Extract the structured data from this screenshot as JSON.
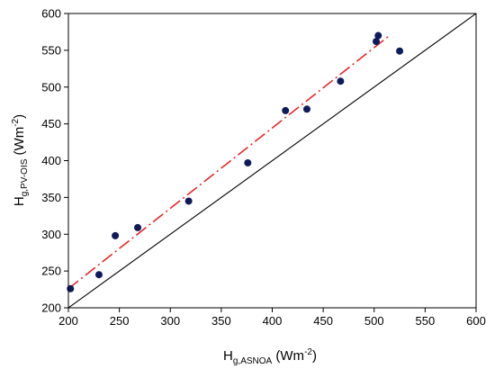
{
  "chart_data": {
    "type": "scatter",
    "xlabel": {
      "main": "H",
      "sub": "g,ASNOA",
      "unit_pre": " (Wm",
      "unit_sup": "-2",
      "unit_post": ")"
    },
    "ylabel": {
      "main": "H",
      "sub": "g,PV-OIS",
      "unit_pre": " (Wm",
      "unit_sup": "-2",
      "unit_post": ")"
    },
    "xlim": [
      200,
      600
    ],
    "ylim": [
      200,
      600
    ],
    "xticks": [
      "200",
      "250",
      "300",
      "350",
      "400",
      "450",
      "500",
      "550",
      "600"
    ],
    "yticks": [
      "200",
      "250",
      "300",
      "350",
      "400",
      "450",
      "500",
      "550",
      "600"
    ],
    "grid": false,
    "legend": "none",
    "series": [
      {
        "kind": "points",
        "color": "#0d1a5c",
        "x": [
          202,
          230,
          246,
          268,
          318,
          376,
          413,
          434,
          467,
          502,
          504,
          525
        ],
        "y": [
          226,
          245,
          298,
          309,
          345,
          397,
          468,
          470,
          508,
          562,
          570,
          549
        ]
      },
      {
        "kind": "line",
        "style": "dashed",
        "color": "#e8262a",
        "x": [
          200,
          515
        ],
        "y": [
          226,
          570
        ]
      },
      {
        "kind": "line",
        "style": "solid",
        "color": "#000000",
        "x": [
          200,
          600
        ],
        "y": [
          200,
          600
        ]
      }
    ]
  }
}
